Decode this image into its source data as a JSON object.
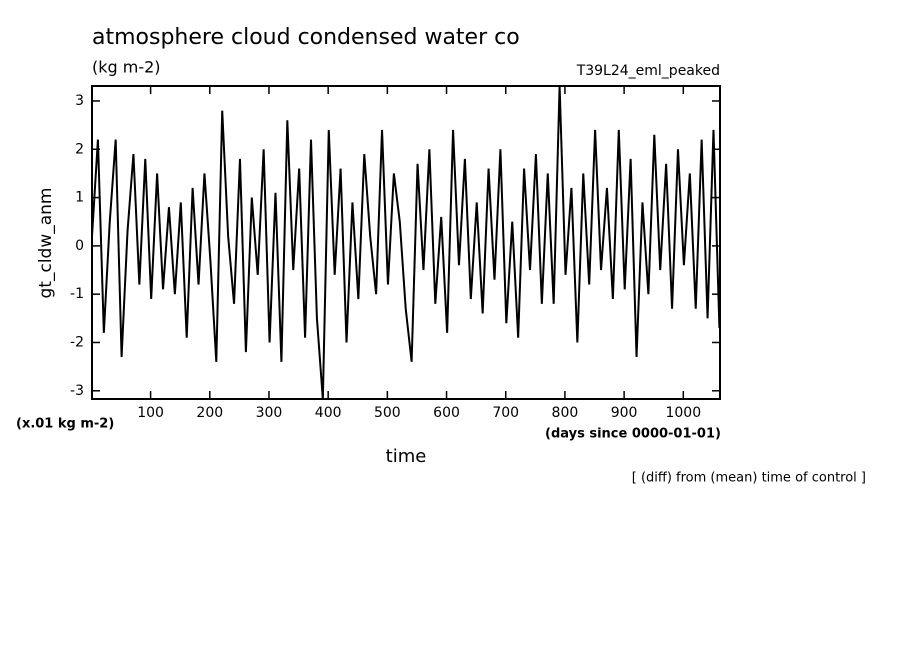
{
  "chart_data": {
    "type": "line",
    "title": "atmosphere cloud condensed water co",
    "subtitle": "(kg m-2)",
    "run_label": "T39L24_eml_peaked",
    "y_label": "gt_cldw_anm",
    "y_units": "(x.01 kg m-2)",
    "x_label": "time",
    "x_units": "(days since 0000-01-01)",
    "note": "[ (diff) from (mean) time of control ]",
    "color": "#000000",
    "xlim": [
      1,
      1062
    ],
    "ylim": [
      -3.17,
      3.31
    ],
    "xticks": [
      100,
      200,
      300,
      400,
      500,
      600,
      700,
      800,
      900,
      1000
    ],
    "yticks": [
      -3,
      -2,
      -1,
      0,
      1,
      2,
      3
    ],
    "x": [
      1,
      11,
      21,
      31,
      41,
      51,
      61,
      71,
      81,
      91,
      101,
      111,
      121,
      131,
      141,
      151,
      161,
      171,
      181,
      191,
      201,
      211,
      221,
      231,
      241,
      251,
      261,
      271,
      281,
      291,
      301,
      311,
      321,
      331,
      341,
      351,
      361,
      371,
      381,
      391,
      401,
      411,
      421,
      431,
      441,
      451,
      461,
      471,
      481,
      491,
      501,
      511,
      521,
      531,
      541,
      551,
      561,
      571,
      581,
      591,
      601,
      611,
      621,
      631,
      641,
      651,
      661,
      671,
      681,
      691,
      701,
      711,
      721,
      731,
      741,
      751,
      761,
      771,
      781,
      791,
      801,
      811,
      821,
      831,
      841,
      851,
      861,
      871,
      881,
      891,
      901,
      911,
      921,
      931,
      941,
      951,
      961,
      971,
      981,
      991,
      1001,
      1011,
      1021,
      1031,
      1041,
      1051,
      1061
    ],
    "values": [
      0.2,
      2.2,
      -1.8,
      0.5,
      2.2,
      -2.3,
      0.3,
      1.9,
      -0.8,
      1.8,
      -1.1,
      1.5,
      -0.9,
      0.8,
      -1.0,
      0.9,
      -1.9,
      1.2,
      -0.8,
      1.5,
      -0.3,
      -2.4,
      2.8,
      0.2,
      -1.2,
      1.8,
      -2.2,
      1.0,
      -0.6,
      2.0,
      -2.0,
      1.1,
      -2.4,
      2.6,
      -0.5,
      1.6,
      -1.9,
      2.2,
      -1.5,
      -3.17,
      2.4,
      -0.6,
      1.6,
      -2.0,
      0.9,
      -1.1,
      1.9,
      0.2,
      -1.0,
      2.4,
      -0.8,
      1.5,
      0.5,
      -1.3,
      -2.4,
      1.7,
      -0.5,
      2.0,
      -1.2,
      0.6,
      -1.8,
      2.4,
      -0.4,
      1.8,
      -1.1,
      0.9,
      -1.4,
      1.6,
      -0.7,
      2.0,
      -1.6,
      0.5,
      -1.9,
      1.6,
      -0.5,
      1.9,
      -1.2,
      1.5,
      -1.2,
      3.31,
      -0.6,
      1.2,
      -2.0,
      1.5,
      -0.8,
      2.4,
      -0.5,
      1.2,
      -1.1,
      2.4,
      -0.9,
      1.8,
      -2.3,
      0.9,
      -1.0,
      2.3,
      -0.5,
      1.7,
      -1.3,
      2.0,
      -0.4,
      1.5,
      -1.3,
      2.2,
      -1.5,
      2.4,
      -1.7
    ]
  }
}
